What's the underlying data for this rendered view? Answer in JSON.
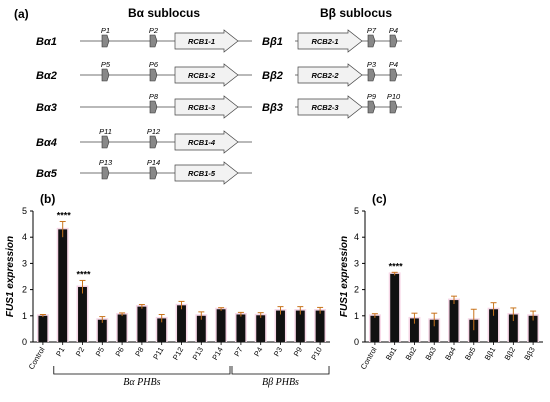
{
  "panel_a": {
    "label": "(a)",
    "left_title": "Bα sublocus",
    "right_title": "Bβ sublocus",
    "alpha_rows": [
      {
        "label": "Bα1",
        "gene": "RCB1-1",
        "phbs": [
          "P1",
          "P2"
        ]
      },
      {
        "label": "Bα2",
        "gene": "RCB1-2",
        "phbs": [
          "P5",
          "P6"
        ]
      },
      {
        "label": "Bα3",
        "gene": "RCB1-3",
        "phbs": [
          "P8"
        ]
      },
      {
        "label": "Bα4",
        "gene": "RCB1-4",
        "phbs": [
          "P11",
          "P12"
        ]
      },
      {
        "label": "Bα5",
        "gene": "RCB1-5",
        "phbs": [
          "P13",
          "P14"
        ]
      }
    ],
    "beta_rows": [
      {
        "label": "Bβ1",
        "gene": "RCB2-1",
        "phbs": [
          "P7",
          "P4"
        ]
      },
      {
        "label": "Bβ2",
        "gene": "RCB2-2",
        "phbs": [
          "P3",
          "P4"
        ]
      },
      {
        "label": "Bβ3",
        "gene": "RCB2-3",
        "phbs": [
          "P9",
          "P10"
        ]
      }
    ]
  },
  "chart_data": [
    {
      "type": "bar",
      "panel": "(b)",
      "ylabel": "FUS1 expression",
      "ylim": [
        0,
        5
      ],
      "yticks": [
        "0",
        "1",
        "2",
        "3",
        "4",
        "5"
      ],
      "categories": [
        "Control",
        "P1",
        "P2",
        "P5",
        "P6",
        "P8",
        "P11",
        "P12",
        "P13",
        "P14",
        "P7",
        "P4",
        "P3",
        "P9",
        "P10"
      ],
      "values": [
        1.0,
        4.3,
        2.1,
        0.85,
        1.05,
        1.35,
        0.9,
        1.4,
        1.0,
        1.25,
        1.05,
        1.02,
        1.2,
        1.2,
        1.2
      ],
      "errors": [
        0.05,
        0.3,
        0.25,
        0.12,
        0.06,
        0.08,
        0.15,
        0.15,
        0.15,
        0.06,
        0.08,
        0.1,
        0.15,
        0.15,
        0.12
      ],
      "significance": [
        {
          "category": "P1",
          "text": "****"
        },
        {
          "category": "P2",
          "text": "****"
        }
      ],
      "groups": [
        {
          "label": "Bα PHBs",
          "from": "P1",
          "to": "P14"
        },
        {
          "label": "Bβ PHBs",
          "from": "P7",
          "to": "P10"
        }
      ]
    },
    {
      "type": "bar",
      "panel": "(c)",
      "ylabel": "FUS1 expression",
      "ylim": [
        0,
        5
      ],
      "yticks": [
        "0",
        "1",
        "2",
        "3",
        "4",
        "5"
      ],
      "categories": [
        "Control",
        "Bα1",
        "Bα2",
        "Bα3",
        "Bα4",
        "Bα5",
        "Bβ1",
        "Bβ2",
        "Bβ3"
      ],
      "values": [
        1.0,
        2.6,
        0.9,
        0.85,
        1.6,
        0.85,
        1.25,
        1.05,
        1.0
      ],
      "errors": [
        0.08,
        0.06,
        0.2,
        0.25,
        0.15,
        0.4,
        0.25,
        0.25,
        0.18
      ],
      "significance": [
        {
          "category": "Bα1",
          "text": "****"
        }
      ]
    }
  ]
}
